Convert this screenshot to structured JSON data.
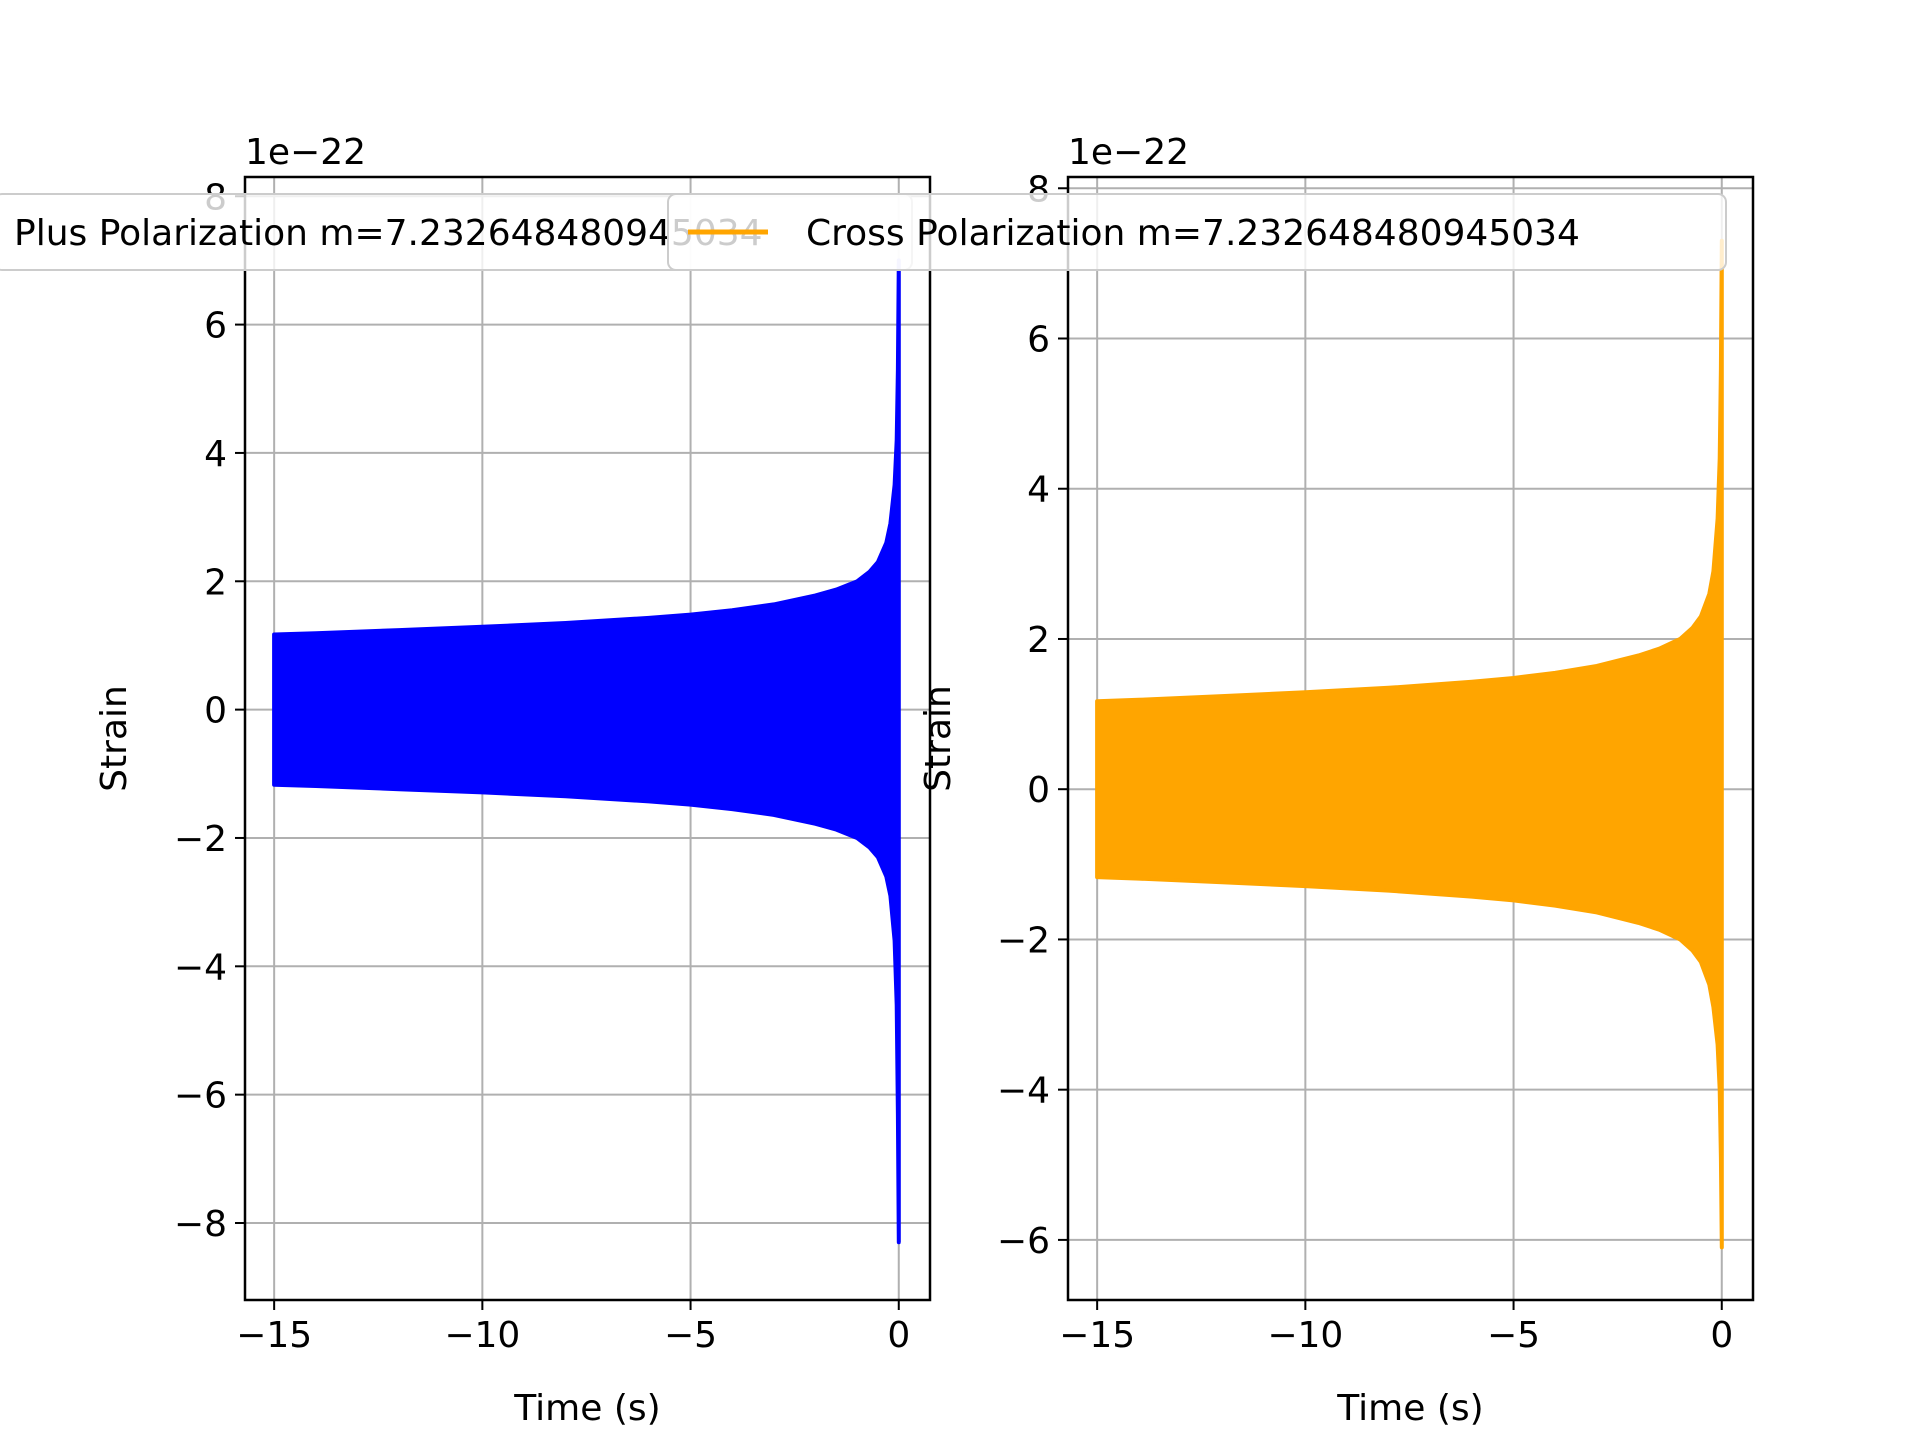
{
  "chart_data": [
    {
      "type": "line",
      "x_label": "Time (s)",
      "y_label": "Strain",
      "y_scale_label": "1e−22",
      "x_ticks": [
        -15,
        -10,
        -5,
        0
      ],
      "x_tick_labels": [
        "−15",
        "−10",
        "−5",
        "0"
      ],
      "y_ticks": [
        -8,
        -6,
        -4,
        -2,
        0,
        2,
        4,
        6,
        8
      ],
      "y_tick_labels": [
        "−8",
        "−6",
        "−4",
        "−2",
        "0",
        "2",
        "4",
        "6",
        "8"
      ],
      "xlim": [
        -15.7,
        0.75
      ],
      "ylim": [
        -9.2,
        8.3
      ],
      "grid": true,
      "legend_location": "upper-center",
      "series": [
        {
          "name": "Plus Polarization m=7.232648480945034",
          "color": "#0000ff",
          "envelope_time": [
            -15,
            -14,
            -12,
            -10,
            -8,
            -6,
            -5,
            -4,
            -3,
            -2,
            -1.5,
            -1,
            -0.7,
            -0.5,
            -0.3,
            -0.2,
            -0.1,
            -0.05,
            -0.02,
            0
          ],
          "envelope_upper": [
            1.17,
            1.19,
            1.24,
            1.29,
            1.35,
            1.43,
            1.48,
            1.55,
            1.64,
            1.78,
            1.87,
            2.0,
            2.15,
            2.3,
            2.6,
            2.9,
            3.5,
            4.2,
            5.3,
            7.0
          ],
          "envelope_lower": [
            -1.17,
            -1.19,
            -1.24,
            -1.29,
            -1.35,
            -1.43,
            -1.48,
            -1.55,
            -1.64,
            -1.78,
            -1.87,
            -2.0,
            -2.15,
            -2.3,
            -2.6,
            -2.9,
            -3.6,
            -4.6,
            -6.3,
            -8.3
          ]
        }
      ]
    },
    {
      "type": "line",
      "x_label": "Time (s)",
      "y_label": "Strain",
      "y_scale_label": "1e−22",
      "x_ticks": [
        -15,
        -10,
        -5,
        0
      ],
      "x_tick_labels": [
        "−15",
        "−10",
        "−5",
        "0"
      ],
      "y_ticks": [
        -6,
        -4,
        -2,
        0,
        2,
        4,
        6,
        8
      ],
      "y_tick_labels": [
        "−6",
        "−4",
        "−2",
        "0",
        "2",
        "4",
        "6",
        "8"
      ],
      "xlim": [
        -15.7,
        0.75
      ],
      "ylim": [
        -6.8,
        8.15
      ],
      "grid": true,
      "legend_location": "upper-center",
      "series": [
        {
          "name": "Cross Polarization m=7.232648480945034",
          "color": "#ffa500",
          "envelope_time": [
            -15,
            -14,
            -12,
            -10,
            -8,
            -6,
            -5,
            -4,
            -3,
            -2,
            -1.5,
            -1,
            -0.7,
            -0.5,
            -0.3,
            -0.2,
            -0.1,
            -0.05,
            -0.02,
            0
          ],
          "envelope_upper": [
            1.17,
            1.19,
            1.24,
            1.29,
            1.35,
            1.43,
            1.48,
            1.55,
            1.64,
            1.78,
            1.87,
            2.0,
            2.15,
            2.3,
            2.6,
            2.9,
            3.6,
            4.4,
            5.6,
            7.3
          ],
          "envelope_lower": [
            -1.17,
            -1.19,
            -1.24,
            -1.29,
            -1.35,
            -1.43,
            -1.48,
            -1.55,
            -1.64,
            -1.78,
            -1.87,
            -2.0,
            -2.15,
            -2.3,
            -2.6,
            -2.9,
            -3.4,
            -4.0,
            -4.9,
            -6.1
          ]
        }
      ]
    }
  ]
}
